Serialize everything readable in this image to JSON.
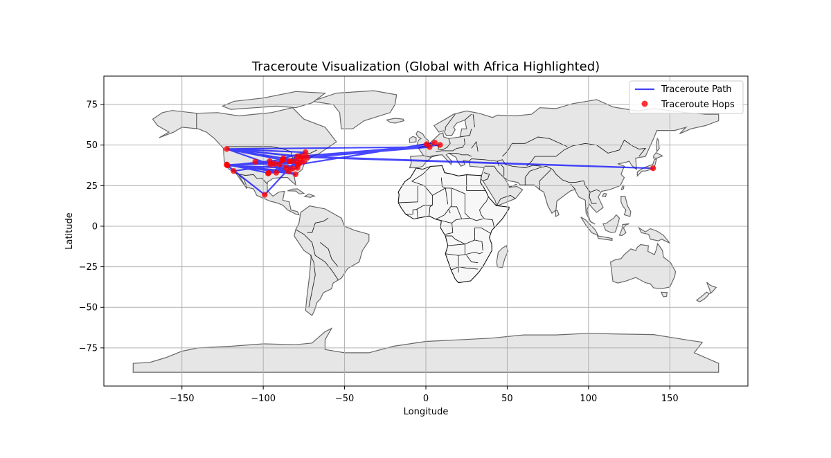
{
  "chart_data": {
    "type": "line",
    "title": "Traceroute Visualization (Global with Africa Highlighted)",
    "xlabel": "Longitude",
    "ylabel": "Latitude",
    "xlim": [
      -198,
      198
    ],
    "ylim": [
      -98.5,
      92.5
    ],
    "xticks": [
      -150,
      -100,
      -50,
      0,
      50,
      100,
      150
    ],
    "yticks": [
      -75,
      -50,
      -25,
      0,
      25,
      50,
      75
    ],
    "xtick_labels": [
      "−150",
      "−100",
      "−50",
      "0",
      "50",
      "100",
      "150"
    ],
    "ytick_labels": [
      "−75",
      "−50",
      "−25",
      "0",
      "25",
      "50",
      "75"
    ],
    "grid": true,
    "legend_position": "top-right",
    "legend": [
      "Traceroute Path",
      "Traceroute Hops"
    ],
    "colors": {
      "path": "#0000ff",
      "hops": "#ff0000",
      "land": "#e6e6e6",
      "land_edge": "#666666",
      "africa": "#f7f7f7",
      "africa_edge": "#111111",
      "grid": "#b0b0b0"
    },
    "series": [
      {
        "name": "Traceroute Path",
        "style": "line",
        "points": [
          [
            -122.4,
            47.6
          ],
          [
            -87.6,
            41.9
          ],
          [
            -74.0,
            45.5
          ],
          [
            -122.4,
            47.6
          ],
          [
            -95.4,
            38.0
          ],
          [
            -80.2,
            32.0
          ],
          [
            -122.4,
            37.8
          ],
          [
            -84.4,
            33.8
          ],
          [
            -96.8,
            32.8
          ],
          [
            -122.4,
            38.0
          ],
          [
            -118.2,
            34.0
          ],
          [
            -90.0,
            38.0
          ],
          [
            -77.0,
            42.0
          ],
          [
            2.3,
            48.8
          ],
          [
            -122.4,
            47.6
          ],
          [
            -79.0,
            43.0
          ],
          [
            8.7,
            50.1
          ],
          [
            -88.0,
            41.0
          ],
          [
            -122.0,
            37.4
          ],
          [
            -99.1,
            19.4
          ],
          [
            -80.0,
            40.0
          ],
          [
            -93.0,
            38.5
          ],
          [
            -104.9,
            39.7
          ],
          [
            -77.5,
            39.0
          ],
          [
            -122.4,
            37.7
          ],
          [
            -83.0,
            40.0
          ],
          [
            -97.0,
            32.5
          ],
          [
            -75.0,
            40.0
          ],
          [
            -87.6,
            41.9
          ],
          [
            -92.0,
            33.0
          ],
          [
            -79.0,
            36.0
          ],
          [
            -84.0,
            40.0
          ],
          [
            -122.3,
            47.5
          ],
          [
            -76.0,
            43.0
          ],
          [
            139.7,
            35.7
          ],
          [
            -73.0,
            42.5
          ],
          [
            -88.5,
            40.5
          ],
          [
            -82.0,
            35.5
          ],
          [
            -96.0,
            40.0
          ],
          [
            -121.9,
            37.3
          ],
          [
            -86.0,
            36.0
          ],
          [
            -78.5,
            38.0
          ],
          [
            5.5,
            51.5
          ]
        ]
      },
      {
        "name": "Traceroute Hops",
        "style": "scatter",
        "points": [
          [
            -122.4,
            47.6
          ],
          [
            -87.6,
            41.9
          ],
          [
            -74.0,
            45.5
          ],
          [
            -95.4,
            38.0
          ],
          [
            -80.2,
            32.0
          ],
          [
            -122.4,
            37.8
          ],
          [
            -84.4,
            33.8
          ],
          [
            -96.8,
            32.8
          ],
          [
            -122.4,
            38.0
          ],
          [
            -118.2,
            34.0
          ],
          [
            -90.0,
            38.0
          ],
          [
            -77.0,
            42.0
          ],
          [
            2.3,
            48.8
          ],
          [
            -79.0,
            43.0
          ],
          [
            8.7,
            50.1
          ],
          [
            -88.0,
            41.0
          ],
          [
            -122.0,
            37.4
          ],
          [
            -99.1,
            19.4
          ],
          [
            -80.0,
            40.0
          ],
          [
            -93.0,
            38.5
          ],
          [
            -104.9,
            39.7
          ],
          [
            -77.5,
            39.0
          ],
          [
            -83.0,
            40.0
          ],
          [
            -97.0,
            32.5
          ],
          [
            -75.0,
            40.0
          ],
          [
            -92.0,
            33.0
          ],
          [
            -79.0,
            36.0
          ],
          [
            -84.0,
            40.0
          ],
          [
            -76.0,
            43.0
          ],
          [
            139.7,
            35.7
          ],
          [
            -73.0,
            42.5
          ],
          [
            -88.5,
            40.5
          ],
          [
            -82.0,
            35.5
          ],
          [
            -96.0,
            40.0
          ],
          [
            -86.0,
            36.0
          ],
          [
            -78.5,
            38.0
          ],
          [
            5.5,
            51.5
          ],
          [
            0.5,
            50.5
          ]
        ]
      }
    ]
  }
}
